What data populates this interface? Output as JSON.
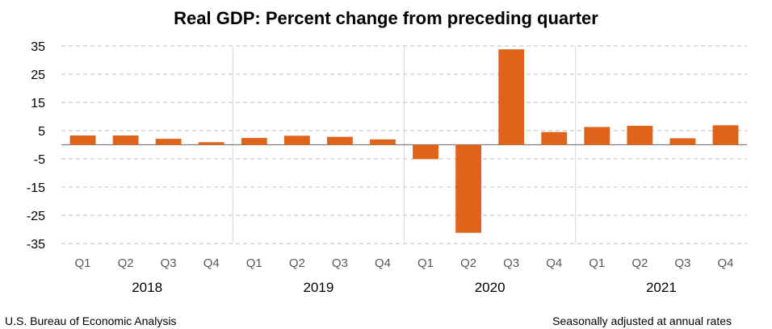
{
  "chart_data": {
    "type": "bar",
    "title": "Real GDP:  Percent change from preceding quarter",
    "categories": [
      "Q1",
      "Q2",
      "Q3",
      "Q4",
      "Q1",
      "Q2",
      "Q3",
      "Q4",
      "Q1",
      "Q2",
      "Q3",
      "Q4",
      "Q1",
      "Q2",
      "Q3",
      "Q4"
    ],
    "years": [
      "2018",
      "2019",
      "2020",
      "2021"
    ],
    "series": [
      {
        "values": [
          3.3,
          3.3,
          2.1,
          0.9,
          2.4,
          3.2,
          2.8,
          1.9,
          -5.1,
          -31.2,
          33.8,
          4.5,
          6.3,
          6.7,
          2.3,
          6.9
        ]
      }
    ],
    "ylim": [
      -35,
      35
    ],
    "yticks": [
      35,
      25,
      15,
      5,
      -5,
      -15,
      -25,
      -35
    ],
    "bar_color": "#e0631b",
    "grid": "dashed horizontal",
    "xlabel": "",
    "ylabel": ""
  },
  "footer": {
    "source": "U.S. Bureau of Economic Analysis",
    "note": "Seasonally adjusted at annual rates"
  }
}
